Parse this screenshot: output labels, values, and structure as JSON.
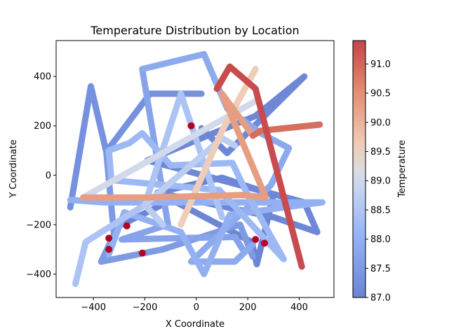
{
  "chart_data": {
    "type": "line",
    "title": "Temperature Distribution by Location",
    "xlabel": "X Coordinate",
    "ylabel": "Y Coordinate",
    "xlim": [
      -545,
      535
    ],
    "ylim": [
      -495,
      545
    ],
    "xticks": [
      -400,
      -200,
      0,
      200,
      400
    ],
    "yticks": [
      -400,
      -200,
      0,
      200,
      400
    ],
    "grid": false,
    "colorbar": {
      "label": "Temperature",
      "min": 87.0,
      "max": 91.4,
      "ticks": [
        87.0,
        87.5,
        88.0,
        88.5,
        89.0,
        89.5,
        90.0,
        90.5,
        91.0
      ],
      "colormap": "coolwarm"
    },
    "segments": [
      {
        "t": 87.05,
        "points": [
          [
            -290,
            -200
          ],
          [
            -95,
            -100
          ],
          [
            215,
            -270
          ],
          [
            235,
            -360
          ],
          [
            300,
            -80
          ],
          [
            100,
            -10
          ],
          [
            -150,
            -70
          ]
        ]
      },
      {
        "t": 87.1,
        "points": [
          [
            -150,
            -70
          ],
          [
            300,
            -170
          ],
          [
            470,
            -230
          ],
          [
            420,
            -110
          ],
          [
            -190,
            60
          ],
          [
            230,
            240
          ],
          [
            420,
            400
          ],
          [
            120,
            90
          ],
          [
            20,
            190
          ]
        ]
      },
      {
        "t": 87.3,
        "points": [
          [
            -490,
            -130
          ],
          [
            -410,
            360
          ],
          [
            -350,
            95
          ],
          [
            -180,
            330
          ],
          [
            20,
            330
          ],
          [
            -10,
            330
          ]
        ]
      },
      {
        "t": 87.5,
        "points": [
          [
            -350,
            95
          ],
          [
            -320,
            -240
          ],
          [
            -370,
            -350
          ],
          [
            -130,
            -300
          ],
          [
            170,
            -200
          ],
          [
            220,
            -330
          ]
        ]
      },
      {
        "t": 87.7,
        "points": [
          [
            -210,
            430
          ],
          [
            -110,
            -200
          ],
          [
            -290,
            -260
          ],
          [
            150,
            -250
          ],
          [
            180,
            -300
          ]
        ]
      },
      {
        "t": 87.85,
        "points": [
          [
            -210,
            430
          ],
          [
            30,
            490
          ],
          [
            120,
            270
          ],
          [
            250,
            170
          ],
          [
            360,
            110
          ],
          [
            290,
            -40
          ],
          [
            -20,
            -350
          ],
          [
            150,
            -350
          ],
          [
            220,
            -280
          ]
        ]
      },
      {
        "t": 88.0,
        "points": [
          [
            -490,
            -100
          ],
          [
            -360,
            -110
          ],
          [
            490,
            -110
          ],
          [
            130,
            -160
          ],
          [
            30,
            -400
          ],
          [
            -60,
            -230
          ],
          [
            -280,
            -150
          ],
          [
            -340,
            -320
          ]
        ]
      },
      {
        "t": 88.2,
        "points": [
          [
            -340,
            100
          ],
          [
            -260,
            130
          ],
          [
            -210,
            170
          ],
          [
            -100,
            40
          ],
          [
            140,
            50
          ],
          [
            200,
            -80
          ],
          [
            340,
            -340
          ],
          [
            90,
            -60
          ],
          [
            -330,
            -20
          ],
          [
            -340,
            100
          ]
        ]
      },
      {
        "t": 88.45,
        "points": [
          [
            -470,
            -440
          ],
          [
            -430,
            -270
          ],
          [
            -200,
            -120
          ],
          [
            -60,
            330
          ],
          [
            100,
            -170
          ]
        ]
      },
      {
        "t": 88.7,
        "points": [
          [
            -130,
            -200
          ],
          [
            -200,
            -120
          ],
          [
            100,
            150
          ],
          [
            150,
            120
          ]
        ]
      },
      {
        "t": 89.05,
        "points": [
          [
            -440,
            -90
          ],
          [
            230,
            300
          ]
        ]
      },
      {
        "t": 89.6,
        "points": [
          [
            -60,
            -200
          ],
          [
            100,
            180
          ],
          [
            230,
            430
          ]
        ]
      },
      {
        "t": 90.3,
        "points": [
          [
            -440,
            -90
          ],
          [
            -180,
            -90
          ],
          [
            180,
            -80
          ],
          [
            270,
            -90
          ],
          [
            100,
            330
          ],
          [
            220,
            160
          ]
        ]
      },
      {
        "t": 90.9,
        "points": [
          [
            220,
            160
          ],
          [
            250,
            180
          ],
          [
            480,
            205
          ]
        ]
      },
      {
        "t": 91.3,
        "points": [
          [
            410,
            -370
          ],
          [
            230,
            350
          ],
          [
            130,
            440
          ],
          [
            80,
            350
          ]
        ]
      },
      {
        "t": 91.4,
        "points": [
          [
            -20,
            200
          ]
        ]
      }
    ],
    "markers": [
      {
        "x": -340,
        "y": -255,
        "t": 91.4
      },
      {
        "x": -340,
        "y": -300,
        "t": 91.4
      },
      {
        "x": -270,
        "y": -205,
        "t": 91.4
      },
      {
        "x": -210,
        "y": -315,
        "t": 91.4
      },
      {
        "x": -20,
        "y": 200,
        "t": 91.4
      },
      {
        "x": 230,
        "y": -260,
        "t": 91.4
      },
      {
        "x": 265,
        "y": -275,
        "t": 91.4
      }
    ]
  }
}
